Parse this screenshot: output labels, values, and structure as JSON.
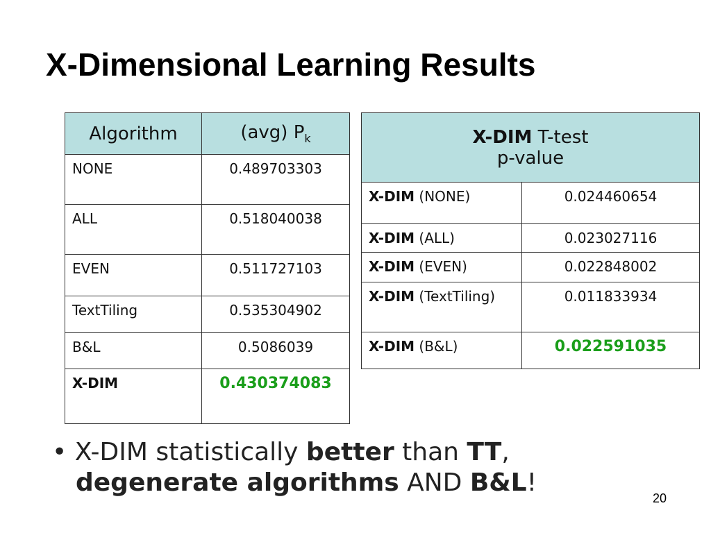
{
  "title": "X-Dimensional Learning Results",
  "table1": {
    "header": {
      "col0": "Algorithm",
      "col1": "(avg) P",
      "col1_sub": "k"
    },
    "rows": [
      [
        "NONE",
        "0.489703303"
      ],
      [
        "ALL",
        "0.518040038"
      ],
      [
        "EVEN",
        "0.511727103"
      ],
      [
        "TextTiling",
        "0.535304902"
      ],
      [
        "B&L",
        "0.5086039"
      ],
      [
        "X-DIM",
        "0.430374083"
      ]
    ]
  },
  "table2": {
    "header": {
      "bold": "X-DIM",
      "rest": "T-test",
      "line2": "p-value"
    },
    "rows": [
      {
        "bold": "X-DIM",
        "rest": "(NONE)",
        "value": "0.024460654"
      },
      {
        "bold": "X-DIM",
        "rest": "(ALL)",
        "value": "0.023027116"
      },
      {
        "bold": "X-DIM",
        "rest": "(EVEN)",
        "value": "0.022848002"
      },
      {
        "bold": "X-DIM",
        "rest": "(TextTiling)",
        "value": "0.011833934"
      },
      {
        "bold": "X-DIM",
        "rest": "(B&L)",
        "value": "0.022591035"
      }
    ]
  },
  "bullet": [
    "X-DIM statistically ",
    "better",
    " than ",
    "TT",
    ", ",
    "degenerate algorithms",
    " AND ",
    "B&L",
    "!"
  ],
  "page_number": "20"
}
